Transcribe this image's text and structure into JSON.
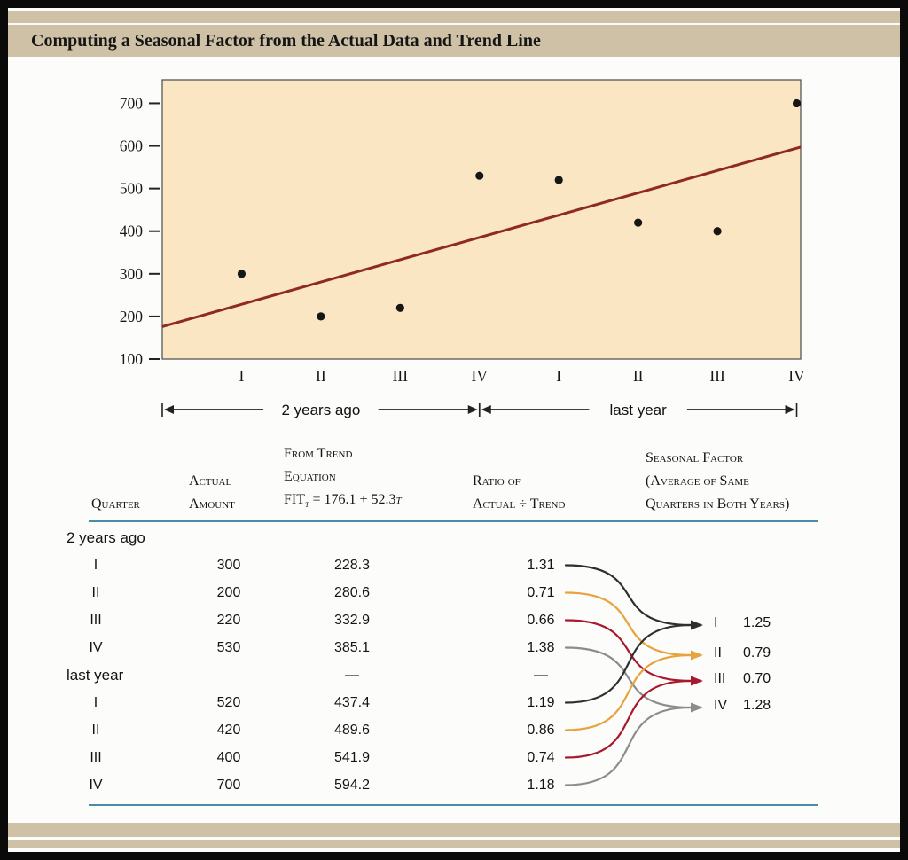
{
  "title": "Computing a Seasonal Factor from the Actual Data and Trend Line",
  "palette": {
    "band_tan": "#cfc1a5",
    "rule_teal": "#4d8ca6",
    "page_black": "#0a0a0a"
  },
  "chart_data": {
    "type": "scatter",
    "x_tick_labels": [
      "I",
      "II",
      "III",
      "IV",
      "I",
      "II",
      "III",
      "IV"
    ],
    "x_values_t": [
      1,
      2,
      3,
      4,
      5,
      6,
      7,
      8
    ],
    "y_values": [
      300,
      200,
      220,
      530,
      520,
      420,
      400,
      700
    ],
    "y_ticks": [
      700,
      600,
      500,
      400,
      300,
      200,
      100
    ],
    "ylim": [
      100,
      755
    ],
    "xlim_t": [
      0,
      8.05
    ],
    "trend_line": {
      "label": "FIT = 176.1 + 52.3t",
      "intercept": 176.1,
      "slope": 52.3
    },
    "x_spans": [
      {
        "label": "2 years ago",
        "from_t": 0,
        "to_t": 4
      },
      {
        "label": "last year",
        "from_t": 4,
        "to_t": 8
      }
    ],
    "grid": "off",
    "colors": {
      "plot_bg": "#fbe6c4",
      "point": "#161616",
      "trend": "#8e2a23",
      "axis": "#222222"
    }
  },
  "table": {
    "headers": {
      "quarter": "Quarter",
      "actual": [
        "Actual",
        "Amount"
      ],
      "trend": [
        "From Trend",
        "Equation"
      ],
      "trend_equation": {
        "fit": "FIT",
        "sub": "t",
        "eq": " = 176.1 + 52.3",
        "t": "t"
      },
      "ratio": [
        "Ratio of",
        "Actual ÷ Trend"
      ],
      "seasonal": [
        "Seasonal Factor",
        "(Average of Same",
        "Quarters in Both Years)"
      ]
    },
    "rows": [
      {
        "type": "group",
        "quarter": "2 years ago",
        "actual": "",
        "trend": "",
        "ratio": ""
      },
      {
        "type": "data",
        "quarter": "I",
        "actual": "300",
        "trend": "228.3",
        "ratio": "1.31"
      },
      {
        "type": "data",
        "quarter": "II",
        "actual": "200",
        "trend": "280.6",
        "ratio": "0.71"
      },
      {
        "type": "data",
        "quarter": "III",
        "actual": "220",
        "trend": "332.9",
        "ratio": "0.66"
      },
      {
        "type": "data",
        "quarter": "IV",
        "actual": "530",
        "trend": "385.1",
        "ratio": "1.38"
      },
      {
        "type": "group",
        "quarter": "last year",
        "actual": "",
        "trend": "—",
        "ratio": "—"
      },
      {
        "type": "data",
        "quarter": "I",
        "actual": "520",
        "trend": "437.4",
        "ratio": "1.19"
      },
      {
        "type": "data",
        "quarter": "II",
        "actual": "420",
        "trend": "489.6",
        "ratio": "0.86"
      },
      {
        "type": "data",
        "quarter": "III",
        "actual": "400",
        "trend": "541.9",
        "ratio": "0.74"
      },
      {
        "type": "data",
        "quarter": "IV",
        "actual": "700",
        "trend": "594.2",
        "ratio": "1.18"
      }
    ],
    "seasonal_factors": [
      {
        "quarter": "I",
        "value": "1.25",
        "color": "#2f2f2f"
      },
      {
        "quarter": "II",
        "value": "0.79",
        "color": "#e6a33e"
      },
      {
        "quarter": "III",
        "value": "0.70",
        "color": "#a8182e"
      },
      {
        "quarter": "IV",
        "value": "1.28",
        "color": "#8c8c8c"
      }
    ],
    "arrow_map": [
      {
        "from_row": 1,
        "to_factor": 0
      },
      {
        "from_row": 2,
        "to_factor": 1
      },
      {
        "from_row": 3,
        "to_factor": 2
      },
      {
        "from_row": 4,
        "to_factor": 3
      },
      {
        "from_row": 6,
        "to_factor": 0
      },
      {
        "from_row": 7,
        "to_factor": 1
      },
      {
        "from_row": 8,
        "to_factor": 2
      },
      {
        "from_row": 9,
        "to_factor": 3
      }
    ]
  }
}
